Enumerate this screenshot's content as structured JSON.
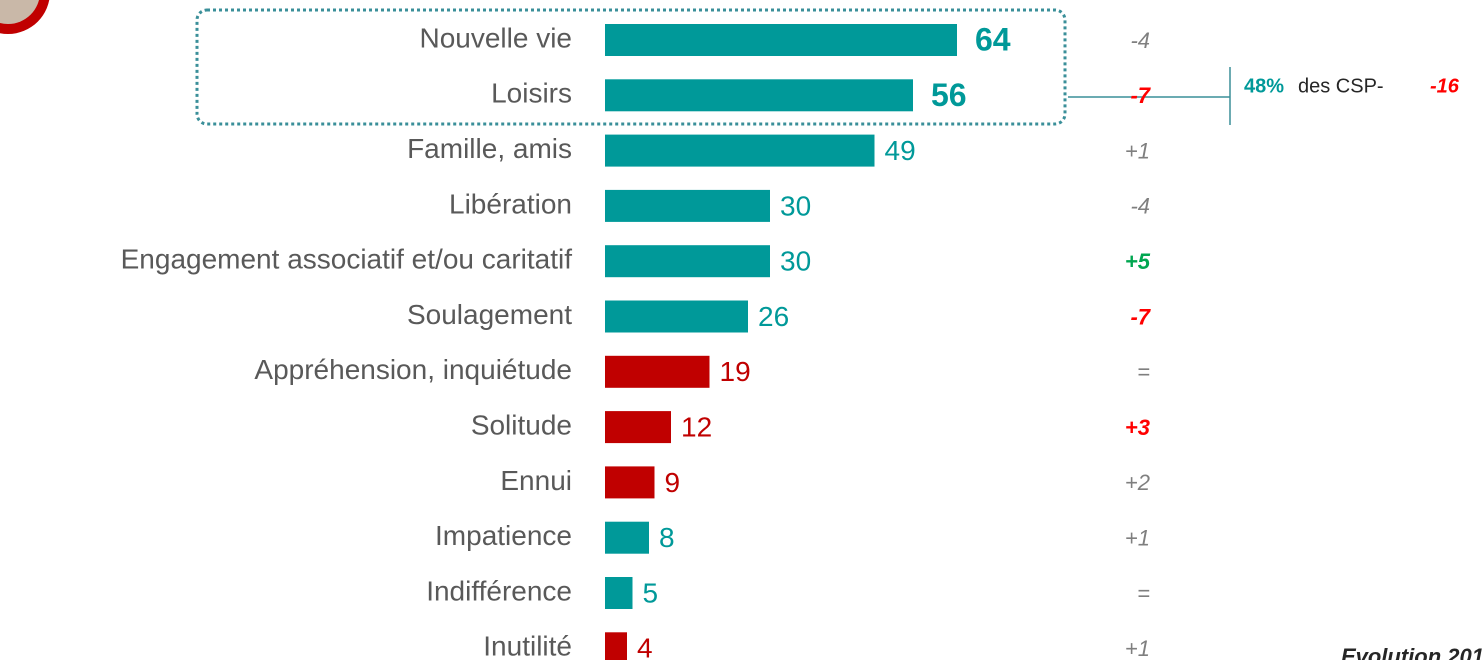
{
  "chart_data": {
    "type": "bar",
    "orientation": "horizontal",
    "categories": [
      "Nouvelle vie",
      "Loisirs",
      "Famille, amis",
      "Libération",
      "Engagement associatif et/ou caritatif",
      "Soulagement",
      "Appréhension, inquiétude",
      "Solitude",
      "Ennui",
      "Impatience",
      "Indifférence",
      "Inutilité"
    ],
    "values": [
      64,
      56,
      49,
      30,
      30,
      26,
      19,
      12,
      9,
      8,
      5,
      4
    ],
    "colors": [
      "#009999",
      "#009999",
      "#009999",
      "#009999",
      "#009999",
      "#009999",
      "#c00000",
      "#c00000",
      "#c00000",
      "#009999",
      "#009999",
      "#c00000"
    ],
    "evolution": [
      "-4",
      "-7",
      "+1",
      "-4",
      "+5",
      "-7",
      "=",
      "+3",
      "+2",
      "+1",
      "=",
      "+1"
    ],
    "evolution_colors": [
      "#7f7f7f",
      "#ff0000",
      "#7f7f7f",
      "#7f7f7f",
      "#00a650",
      "#ff0000",
      "#7f7f7f",
      "#ff0000",
      "#7f7f7f",
      "#7f7f7f",
      "#7f7f7f",
      "#7f7f7f"
    ],
    "annotation": {
      "percent": "48%",
      "text": "des CSP-",
      "evolution": "-16"
    },
    "footer": "Evolution 201"
  }
}
